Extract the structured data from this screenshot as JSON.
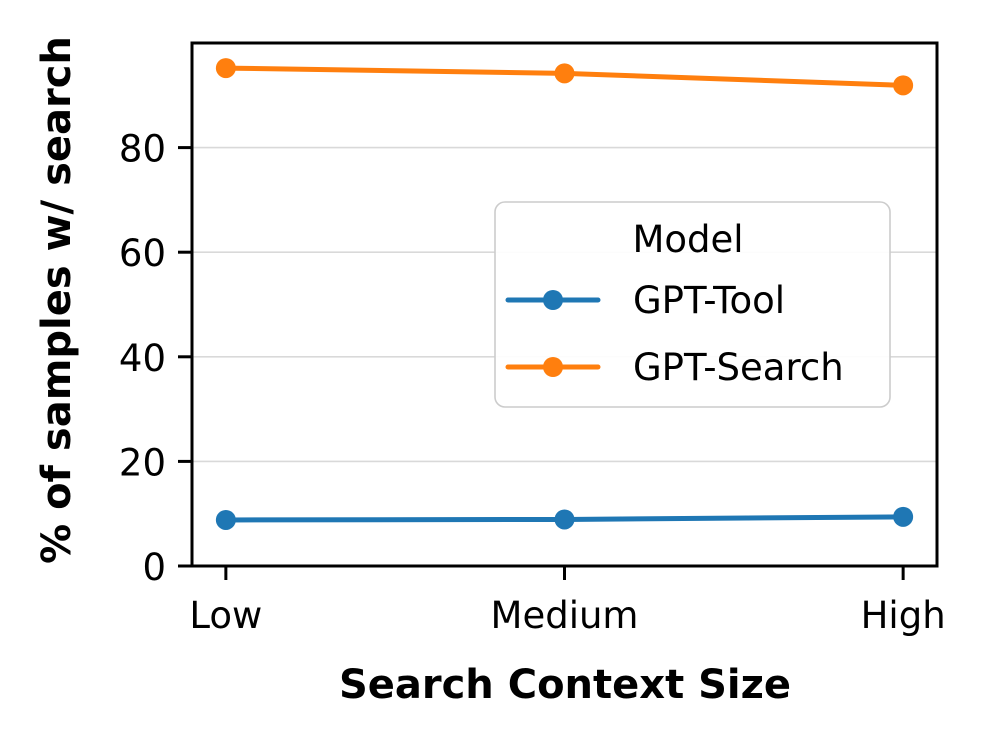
{
  "chart_data": {
    "type": "line",
    "categories": [
      "Low",
      "Medium",
      "High"
    ],
    "series": [
      {
        "name": "GPT-Tool",
        "values": [
          8.8,
          8.9,
          9.4
        ],
        "color": "#1f77b4"
      },
      {
        "name": "GPT-Search",
        "values": [
          95.2,
          94.2,
          91.9
        ],
        "color": "#ff7f0e"
      }
    ],
    "title": "",
    "xlabel": "Search Context Size",
    "ylabel": "% of samples w/ search",
    "ylim": [
      0,
      100
    ],
    "yticks": [
      0,
      20,
      40,
      60,
      80
    ],
    "grid": "horizontal-only",
    "legend": {
      "title": "Model",
      "entries": [
        "GPT-Tool",
        "GPT-Search"
      ],
      "position": "center-right"
    }
  },
  "colors": {
    "background": "#ffffff",
    "spine": "#000000",
    "grid": "#d9d9d9",
    "legend_border": "#cccccc",
    "series_blue": "#1f77b4",
    "series_orange": "#ff7f0e"
  }
}
